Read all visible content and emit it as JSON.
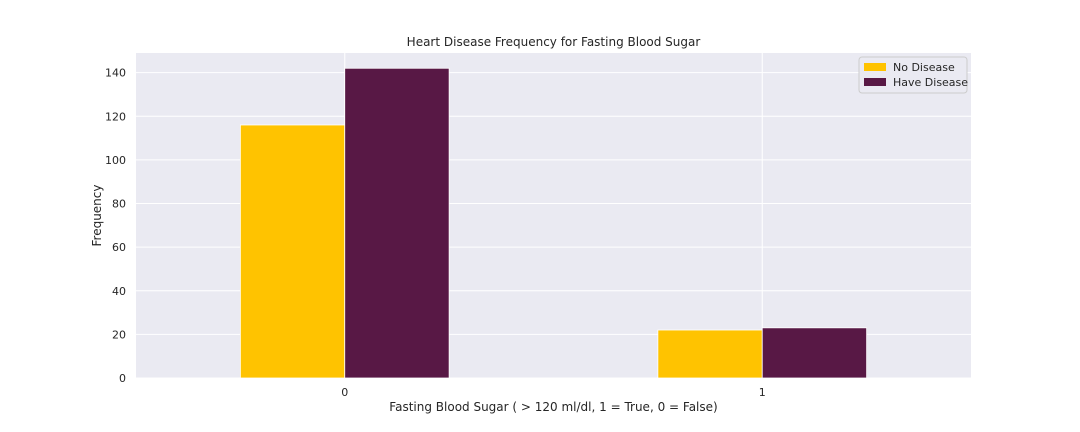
{
  "chart_data": {
    "type": "bar",
    "title": "Heart Disease Frequency for Fasting Blood Sugar",
    "xlabel": "Fasting Blood Sugar ( > 120 ml/dl,  1 = True, 0 = False)",
    "ylabel": "Frequency",
    "categories": [
      "0",
      "1"
    ],
    "series": [
      {
        "name": "No Disease",
        "values": [
          116,
          22
        ],
        "color": "#FFC300"
      },
      {
        "name": "Have Disease",
        "values": [
          142,
          23
        ],
        "color": "#581845"
      }
    ],
    "ylim": [
      0,
      149
    ],
    "yticks": [
      0,
      20,
      40,
      60,
      80,
      100,
      120,
      140
    ],
    "grid": true,
    "legend": "top-right",
    "background": "#EAEAF2"
  }
}
